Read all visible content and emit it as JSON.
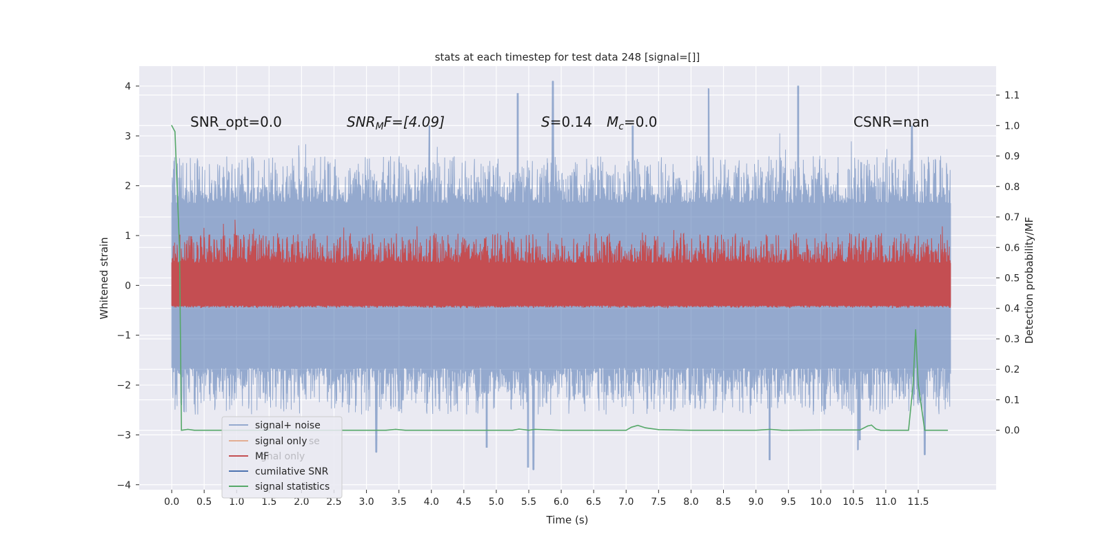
{
  "chart_data": {
    "type": "line",
    "title": "stats at each timestep for test data 248 [signal=[]]",
    "xlabel": "Time (s)",
    "ylabel": "Whitened strain",
    "y2label": "Detection probability/MF",
    "xlim": [
      -0.5,
      12.7
    ],
    "ylim": [
      -4.1,
      4.4
    ],
    "y2lim": [
      -0.195,
      1.195
    ],
    "x_ticks": [
      "0.0",
      "0.5",
      "1.0",
      "1.5",
      "2.0",
      "2.5",
      "3.0",
      "3.5",
      "4.0",
      "4.5",
      "5.0",
      "5.5",
      "6.0",
      "6.5",
      "7.0",
      "7.5",
      "8.0",
      "8.5",
      "9.0",
      "9.5",
      "10.0",
      "10.5",
      "11.0",
      "11.5"
    ],
    "y_ticks": [
      "4",
      "3",
      "2",
      "1",
      "0",
      "−1",
      "−2",
      "−3",
      "−4"
    ],
    "y2_ticks": [
      "1.1",
      "1.0",
      "0.9",
      "0.8",
      "0.7",
      "0.6",
      "0.5",
      "0.4",
      "0.3",
      "0.2",
      "0.1",
      "0.0"
    ],
    "grid": true,
    "legend_position": "lower-left",
    "annotations": {
      "snr_opt": "SNR_opt=0.0",
      "snr_mf_main": "SNR",
      "snr_mf_sub": "M",
      "snr_mf_rest": "F=[4.09]",
      "s_main": "S",
      "s_rest": "=0.14",
      "mc_main": "M",
      "mc_sub": "c",
      "mc_rest": "=0.0",
      "csnr": "CSNR=nan"
    },
    "series": [
      {
        "name": "signal+ noise",
        "color": "#4c72b0",
        "axis": "left",
        "style": "noise-band",
        "x_range": [
          0.0,
          12.0
        ],
        "core_band": [
          -1.65,
          1.65
        ],
        "extremes": [
          {
            "x": 5.87,
            "y": 4.1
          },
          {
            "x": 9.65,
            "y": 4.0
          },
          {
            "x": 8.27,
            "y": 3.95
          },
          {
            "x": 5.33,
            "y": 3.85
          },
          {
            "x": 7.1,
            "y": 3.2
          },
          {
            "x": 11.4,
            "y": 3.2
          },
          {
            "x": 3.97,
            "y": 3.2
          },
          {
            "x": 5.49,
            "y": -3.65
          },
          {
            "x": 5.57,
            "y": -3.7
          },
          {
            "x": 9.21,
            "y": -3.5
          },
          {
            "x": 11.6,
            "y": -3.4
          },
          {
            "x": 3.15,
            "y": -3.35
          },
          {
            "x": 4.85,
            "y": -3.25
          },
          {
            "x": 10.57,
            "y": -3.3
          },
          {
            "x": 10.6,
            "y": -3.1
          }
        ]
      },
      {
        "name": "signal only",
        "color": "#dd8452",
        "axis": "left",
        "style": "hidden"
      },
      {
        "name": "MF",
        "color": "#c44e52",
        "axis": "left",
        "style": "noise-band",
        "x_range": [
          0.0,
          12.0
        ],
        "core_band": [
          -0.4,
          0.45
        ],
        "extremes": [
          {
            "x": 1.0,
            "y": 1.0
          }
        ]
      },
      {
        "name": "cumilative SNR",
        "color": "#4c72b0",
        "axis": "left",
        "style": "hidden"
      },
      {
        "name": "signal statistics",
        "color": "#55a868",
        "axis": "right",
        "x": [
          0.0,
          0.05,
          0.12,
          0.15,
          0.25,
          0.35,
          0.5,
          1.0,
          2.0,
          3.0,
          3.3,
          3.45,
          3.6,
          4.0,
          5.0,
          5.25,
          5.35,
          5.5,
          5.6,
          6.0,
          6.5,
          7.0,
          7.08,
          7.18,
          7.3,
          7.5,
          8.0,
          8.5,
          9.0,
          9.22,
          9.4,
          10.0,
          10.6,
          10.72,
          10.78,
          10.85,
          10.92,
          11.0,
          11.35,
          11.42,
          11.46,
          11.5,
          11.6,
          11.95
        ],
        "y": [
          1.0,
          0.98,
          0.6,
          0.0,
          0.003,
          0.0,
          0.0,
          0.0,
          0.0,
          0.0,
          0.0,
          0.003,
          0.0,
          0.0,
          0.0,
          0.0,
          0.004,
          0.0,
          0.003,
          0.0,
          0.0,
          0.0,
          0.01,
          0.016,
          0.008,
          0.002,
          0.0,
          0.0,
          0.0,
          0.003,
          0.0,
          0.001,
          0.001,
          0.014,
          0.017,
          0.004,
          0.0,
          0.0,
          0.0,
          0.15,
          0.33,
          0.15,
          0.0,
          0.0
        ]
      }
    ]
  },
  "legend": {
    "items": [
      "signal+ noise",
      "signal only",
      "MF",
      "cumilative SNR",
      "signal statistics"
    ],
    "ghost_items": [
      "se",
      "gnal only",
      "ics"
    ]
  }
}
